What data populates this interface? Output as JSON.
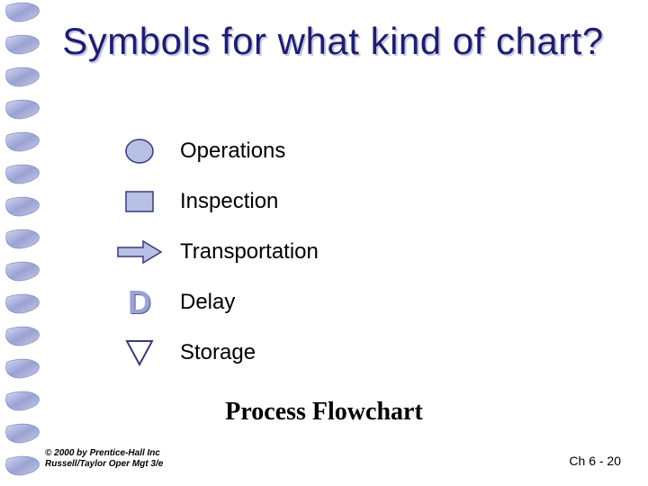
{
  "slide": {
    "title": "Symbols for what kind of chart?",
    "answer": "Process Flowchart",
    "page_label": "Ch 6 - 20",
    "copyright_line1": "© 2000 by Prentice-Hall Inc",
    "copyright_line2": "Russell/Taylor Oper Mgt 3/e"
  },
  "symbols": [
    {
      "shape": "circle",
      "label": "Operations"
    },
    {
      "shape": "square",
      "label": "Inspection"
    },
    {
      "shape": "arrow",
      "label": "Transportation"
    },
    {
      "shape": "letter_d",
      "letter": "D",
      "label": "Delay"
    },
    {
      "shape": "triangle",
      "label": "Storage"
    }
  ],
  "style": {
    "title_color": "#1e1f6b",
    "title_shadow": "#c8c8e8",
    "symbol_fill": "#b8c0e6",
    "symbol_stroke": "#3a3a7a",
    "delay_letter_color": "#9ba3d4",
    "spiral_light": "#c5cae9",
    "spiral_dark": "#7a82b8",
    "background": "#ffffff",
    "label_fontsize": 24,
    "title_fontsize": 42,
    "answer_fontsize": 28
  }
}
